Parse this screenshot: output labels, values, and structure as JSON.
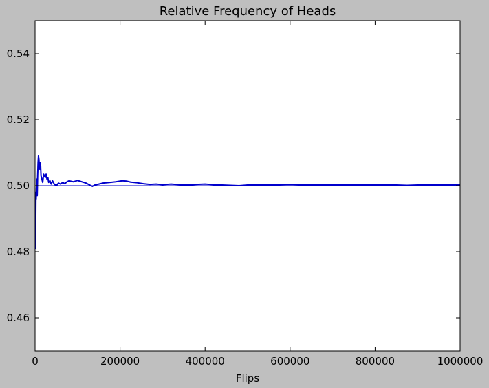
{
  "chart_data": {
    "type": "line",
    "title": "Relative Frequency of Heads",
    "xlabel": "Flips",
    "ylabel": "",
    "xlim": [
      0,
      1000000
    ],
    "ylim": [
      0.45,
      0.55
    ],
    "xticks": [
      0,
      200000,
      400000,
      600000,
      800000,
      1000000
    ],
    "xtick_labels": [
      "0",
      "200000",
      "400000",
      "600000",
      "800000",
      "1000000"
    ],
    "yticks": [
      0.46,
      0.48,
      0.5,
      0.52,
      0.54
    ],
    "ytick_labels": [
      "0.46",
      "0.48",
      "0.50",
      "0.52",
      "0.54"
    ],
    "grid": false,
    "colors": {
      "figure_background": "#bfbfbf",
      "axes_background": "#ffffff",
      "series": "#0000cc",
      "reference_line": "#0000cc"
    },
    "reference_line": {
      "y": 0.5
    },
    "series": [
      {
        "x": [
          0,
          500,
          1000,
          1500,
          2000,
          2500,
          3000,
          4000,
          5000,
          6000,
          7000,
          8000,
          9000,
          10000,
          11000,
          12000,
          13000,
          14000,
          16000,
          18000,
          20000,
          22000,
          24000,
          26000,
          28000,
          30000,
          32000,
          35000,
          38000,
          41000,
          45000,
          50000,
          55000,
          60000,
          65000,
          70000,
          75000,
          80000,
          90000,
          100000,
          110000,
          120000,
          130000,
          135000,
          140000,
          150000,
          160000,
          175000,
          190000,
          205000,
          215000,
          225000,
          240000,
          255000,
          270000,
          285000,
          300000,
          320000,
          340000,
          360000,
          380000,
          400000,
          420000,
          440000,
          460000,
          480000,
          500000,
          525000,
          550000,
          575000,
          600000,
          620000,
          640000,
          660000,
          680000,
          700000,
          725000,
          750000,
          775000,
          800000,
          825000,
          850000,
          875000,
          900000,
          925000,
          950000,
          975000,
          1000000
        ],
        "y": [
          0.493,
          0.481,
          0.494,
          0.489,
          0.498,
          0.496,
          0.499,
          0.502,
          0.497,
          0.503,
          0.507,
          0.509,
          0.508,
          0.506,
          0.505,
          0.507,
          0.506,
          0.503,
          0.502,
          0.501,
          0.5035,
          0.503,
          0.5025,
          0.5035,
          0.502,
          0.5025,
          0.501,
          0.5015,
          0.5005,
          0.5015,
          0.5005,
          0.5,
          0.5008,
          0.5005,
          0.501,
          0.5006,
          0.5012,
          0.5015,
          0.5012,
          0.5016,
          0.5012,
          0.5008,
          0.5001,
          0.4998,
          0.5002,
          0.5005,
          0.5008,
          0.501,
          0.5012,
          0.5015,
          0.5014,
          0.5011,
          0.5009,
          0.5006,
          0.5004,
          0.5005,
          0.5003,
          0.5005,
          0.5003,
          0.5002,
          0.5004,
          0.5005,
          0.5003,
          0.5002,
          0.5001,
          0.5,
          0.5002,
          0.5003,
          0.5002,
          0.5003,
          0.5004,
          0.5003,
          0.5002,
          0.5003,
          0.5002,
          0.5002,
          0.5003,
          0.5002,
          0.5002,
          0.5003,
          0.5002,
          0.5002,
          0.5001,
          0.5002,
          0.5002,
          0.5003,
          0.5002,
          0.5003
        ]
      }
    ]
  }
}
